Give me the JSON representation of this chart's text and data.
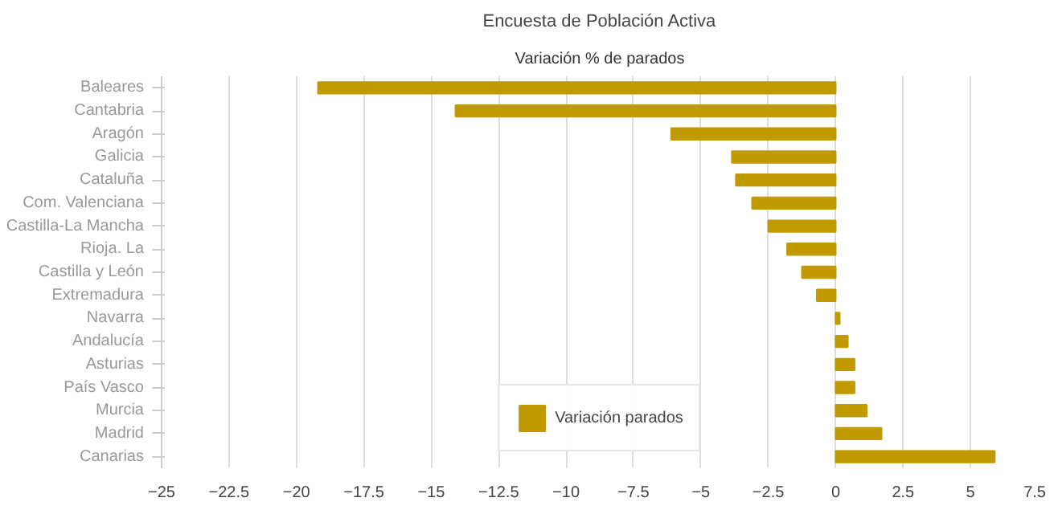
{
  "chart_data": {
    "type": "bar",
    "orientation": "horizontal",
    "title": "Encuesta de Población Activa",
    "subtitle": "Variación % de parados",
    "categories": [
      "Baleares",
      "Cantabria",
      "Aragón",
      "Galicia",
      "Cataluña",
      "Com. Valenciana",
      "Castilla-La Mancha",
      "Rioja. La",
      "Castilla y León",
      "Extremadura",
      "Navarra",
      "Andalucía",
      "Asturias",
      "País Vasco",
      "Murcia",
      "Madrid",
      "Canarias"
    ],
    "series": [
      {
        "name": "Variación parados",
        "color": "#c09a00",
        "values": [
          -19.2,
          -14.1,
          -6.1,
          -3.85,
          -3.7,
          -3.1,
          -2.5,
          -1.8,
          -1.25,
          -0.7,
          0.15,
          0.45,
          0.7,
          0.7,
          1.15,
          1.7,
          5.9
        ]
      }
    ],
    "xlim": [
      -25,
      7.5
    ],
    "xticks": [
      -25,
      -22.5,
      -20,
      -17.5,
      -15,
      -12.5,
      -10,
      -7.5,
      -5,
      -2.5,
      0,
      2.5,
      5,
      7.5
    ],
    "grid": "x",
    "legend": "bottom"
  }
}
